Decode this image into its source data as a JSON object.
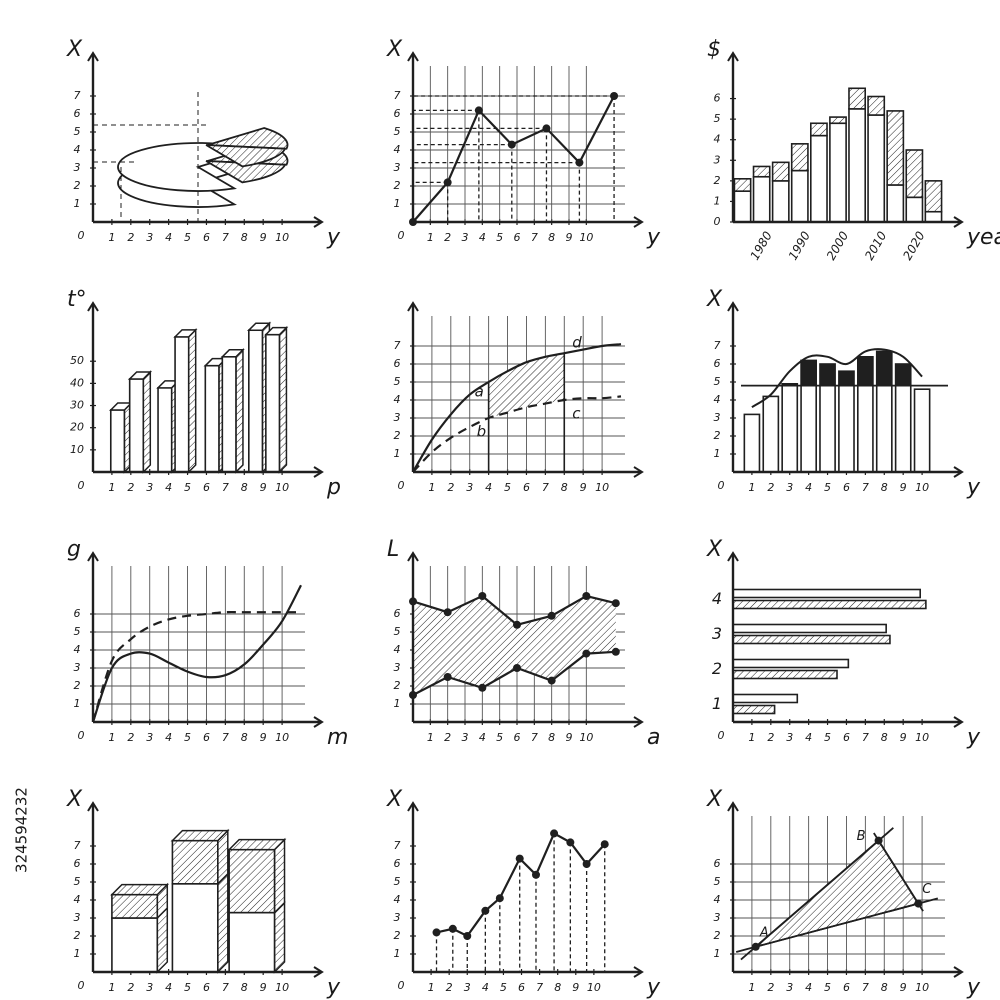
{
  "stock_id": "324594232",
  "chart_data": [
    {
      "type": "pie",
      "y_label": "X",
      "x_label": "y",
      "xlim": [
        0,
        11
      ],
      "ylim": [
        0,
        8
      ],
      "xticks": [
        0,
        1,
        2,
        3,
        4,
        5,
        6,
        7,
        8,
        9,
        10
      ],
      "yticks": [
        1,
        2,
        3,
        4,
        5,
        6,
        7
      ],
      "values": [
        70,
        15,
        15
      ]
    },
    {
      "type": "line",
      "y_label": "X",
      "x_label": "y",
      "grid": true,
      "markers": true,
      "drops": "both",
      "xlim": [
        0,
        12
      ],
      "ylim": [
        0,
        8
      ],
      "xticks": [
        0,
        1,
        2,
        3,
        4,
        5,
        6,
        7,
        8,
        9,
        10
      ],
      "yticks": [
        1,
        2,
        3,
        4,
        5,
        6,
        7
      ],
      "x": [
        0,
        2,
        3.8,
        5.7,
        7.7,
        9.6,
        11.6
      ],
      "series": [
        {
          "values": [
            0,
            2.2,
            6.2,
            4.3,
            5.2,
            3.3,
            7
          ]
        }
      ]
    },
    {
      "type": "bar",
      "y_label": "$",
      "x_label": "years",
      "stacked": true,
      "xlim": [
        0,
        11
      ],
      "ylim": [
        0,
        7
      ],
      "yticks": [
        0,
        1,
        2,
        3,
        4,
        5,
        6
      ],
      "categories": [
        null,
        "1980",
        null,
        "1990",
        null,
        "2000",
        null,
        "2010",
        null,
        "2020",
        null
      ],
      "series": [
        {
          "color": "#ffffff",
          "values": [
            1.5,
            2.2,
            2,
            2.5,
            4.2,
            4.8,
            5.5,
            5.2,
            1.8,
            1.2,
            0.5
          ]
        },
        {
          "color": "#bbbbbb",
          "hatch": true,
          "values": [
            0.6,
            0.5,
            0.9,
            1.3,
            0.6,
            0.3,
            1,
            0.9,
            3.6,
            2.3,
            1.5
          ]
        }
      ]
    },
    {
      "type": "bar",
      "y_label": "t°",
      "x_label": "p",
      "three_d": true,
      "xlim": [
        0,
        11
      ],
      "ylim": [
        0,
        65
      ],
      "xticks": [
        0,
        1,
        2,
        3,
        4,
        5,
        6,
        7,
        8,
        9,
        10
      ],
      "yticks": [
        10,
        20,
        30,
        40,
        50
      ],
      "x": [
        1.3,
        2.3,
        3.8,
        4.7,
        6.3,
        7.2,
        8.6,
        9.5
      ],
      "series": [
        {
          "color": "#ffffff",
          "values": [
            28,
            42,
            38,
            61,
            48,
            52,
            64,
            62
          ]
        }
      ]
    },
    {
      "type": "area",
      "grid": true,
      "smooth": true,
      "xlim": [
        0,
        11
      ],
      "ylim": [
        0,
        8
      ],
      "xticks": [
        0,
        1,
        2,
        3,
        4,
        5,
        6,
        7,
        8,
        9,
        10
      ],
      "yticks": [
        1,
        2,
        3,
        4,
        5,
        6,
        7
      ],
      "x": [
        0,
        1,
        2,
        3,
        4,
        5,
        6,
        7,
        8,
        9,
        10,
        11
      ],
      "shaded_range": [
        4,
        8
      ],
      "annotations": [
        "a",
        "b",
        "c",
        "d"
      ],
      "series": [
        {
          "values": [
            0,
            1.8,
            3.2,
            4.3,
            5.0,
            5.6,
            6.1,
            6.4,
            6.6,
            6.8,
            7.0,
            7.1
          ]
        },
        {
          "dashed": true,
          "values": [
            0,
            1.1,
            1.9,
            2.5,
            3.0,
            3.3,
            3.6,
            3.8,
            4.0,
            4.1,
            4.1,
            4.2
          ]
        }
      ]
    },
    {
      "type": "bar",
      "y_label": "X",
      "x_label": "y",
      "xlim": [
        0,
        11
      ],
      "ylim": [
        0,
        8
      ],
      "xticks": [
        0,
        1,
        2,
        3,
        4,
        5,
        6,
        7,
        8,
        9,
        10
      ],
      "yticks": [
        1,
        2,
        3,
        4,
        5,
        6,
        7
      ],
      "x": [
        1,
        2,
        3,
        4,
        5,
        6,
        7,
        8,
        9,
        10
      ],
      "reference": 4.8,
      "series": [
        {
          "color": "#ffffff",
          "values": [
            3.2,
            4.2,
            4.9,
            6.2,
            6,
            5.6,
            6.4,
            6.7,
            6,
            4.6
          ]
        },
        {
          "style": "line",
          "values": [
            3.6,
            4.3,
            5.6,
            6.4,
            6.4,
            6.0,
            6.7,
            6.8,
            6.4,
            5.3
          ]
        }
      ]
    },
    {
      "type": "line",
      "y_label": "g",
      "x_label": "m",
      "grid": true,
      "smooth": true,
      "xlim": [
        0,
        11
      ],
      "ylim": [
        0,
        8
      ],
      "xticks": [
        0,
        1,
        2,
        3,
        4,
        5,
        6,
        7,
        8,
        9,
        10
      ],
      "yticks": [
        1,
        2,
        3,
        4,
        5,
        6
      ],
      "x": [
        0,
        1,
        2,
        3,
        4,
        5,
        6,
        7,
        8,
        9,
        10,
        11
      ],
      "series": [
        {
          "values": [
            0,
            3,
            3.8,
            3.8,
            3.3,
            2.8,
            2.5,
            2.6,
            3.2,
            4.3,
            5.6,
            7.6
          ]
        },
        {
          "dashed": true,
          "values": [
            0,
            3.4,
            4.6,
            5.3,
            5.7,
            5.9,
            6,
            6.1,
            6.1,
            6.1,
            6.1,
            6.1
          ]
        }
      ]
    },
    {
      "type": "area",
      "y_label": "L",
      "x_label": "a",
      "grid": true,
      "markers": true,
      "xlim": [
        0,
        12
      ],
      "ylim": [
        0,
        8
      ],
      "xticks": [
        1,
        2,
        3,
        4,
        5,
        6,
        7,
        8,
        9,
        10
      ],
      "yticks": [
        1,
        2,
        3,
        4,
        5,
        6
      ],
      "x": [
        0,
        2,
        4,
        6,
        8,
        10,
        11.7
      ],
      "series": [
        {
          "values": [
            6.7,
            6.1,
            7,
            5.4,
            5.9,
            7,
            6.6
          ]
        },
        {
          "values": [
            1.5,
            2.5,
            1.9,
            3,
            2.3,
            3.8,
            3.9
          ]
        }
      ]
    },
    {
      "type": "bar",
      "orientation": "horizontal",
      "y_label": "X",
      "x_label": "y",
      "xlim": [
        0,
        11
      ],
      "xticks": [
        0,
        1,
        2,
        3,
        4,
        5,
        6,
        7,
        8,
        9,
        10
      ],
      "categories": [
        "1",
        "2",
        "3",
        "4"
      ],
      "series": [
        {
          "color": "#ffffff",
          "values": [
            3.4,
            6.1,
            8.1,
            9.9
          ]
        },
        {
          "color": "#bbbbbb",
          "hatch": true,
          "values": [
            2.2,
            5.5,
            8.3,
            10.2
          ]
        }
      ]
    },
    {
      "type": "bar",
      "y_label": "X",
      "x_label": "y",
      "three_d": true,
      "stacked": true,
      "xlim": [
        0,
        11
      ],
      "ylim": [
        0,
        8
      ],
      "xticks": [
        0,
        1,
        2,
        3,
        4,
        5,
        6,
        7,
        8,
        9,
        10
      ],
      "yticks": [
        1,
        2,
        3,
        4,
        5,
        6,
        7
      ],
      "x": [
        2.2,
        5.4,
        8.4
      ],
      "series": [
        {
          "color": "#ffffff",
          "values": [
            3,
            4.9,
            3.3
          ]
        },
        {
          "color": "#bbbbbb",
          "hatch": true,
          "values": [
            1.3,
            2.4,
            3.5
          ]
        }
      ]
    },
    {
      "type": "line",
      "y_label": "X",
      "x_label": "y",
      "markers": true,
      "drops": "x",
      "xlim": [
        0,
        11.5
      ],
      "ylim": [
        0,
        8
      ],
      "xticks": [
        0,
        1,
        2,
        3,
        4,
        5,
        6,
        7,
        8,
        9,
        10
      ],
      "yticks": [
        1,
        2,
        3,
        4,
        5,
        6,
        7
      ],
      "x": [
        1.3,
        2.2,
        3,
        4,
        4.8,
        5.9,
        6.8,
        7.8,
        8.7,
        9.6,
        10.6
      ],
      "series": [
        {
          "values": [
            2.2,
            2.4,
            2,
            3.4,
            4.1,
            6.3,
            5.4,
            7.7,
            7.2,
            6,
            7.1
          ]
        }
      ]
    },
    {
      "type": "scatter",
      "y_label": "X",
      "x_label": "y",
      "grid": true,
      "connect": true,
      "xlim": [
        0,
        11
      ],
      "ylim": [
        0,
        8
      ],
      "xticks": [
        1,
        2,
        3,
        4,
        5,
        6,
        7,
        8,
        9,
        10
      ],
      "yticks": [
        1,
        2,
        3,
        4,
        5,
        6
      ],
      "x": [
        1.2,
        7.7,
        9.8
      ],
      "y": [
        1.4,
        7.3,
        3.8
      ],
      "labels": [
        "A",
        "B",
        "C"
      ]
    }
  ]
}
